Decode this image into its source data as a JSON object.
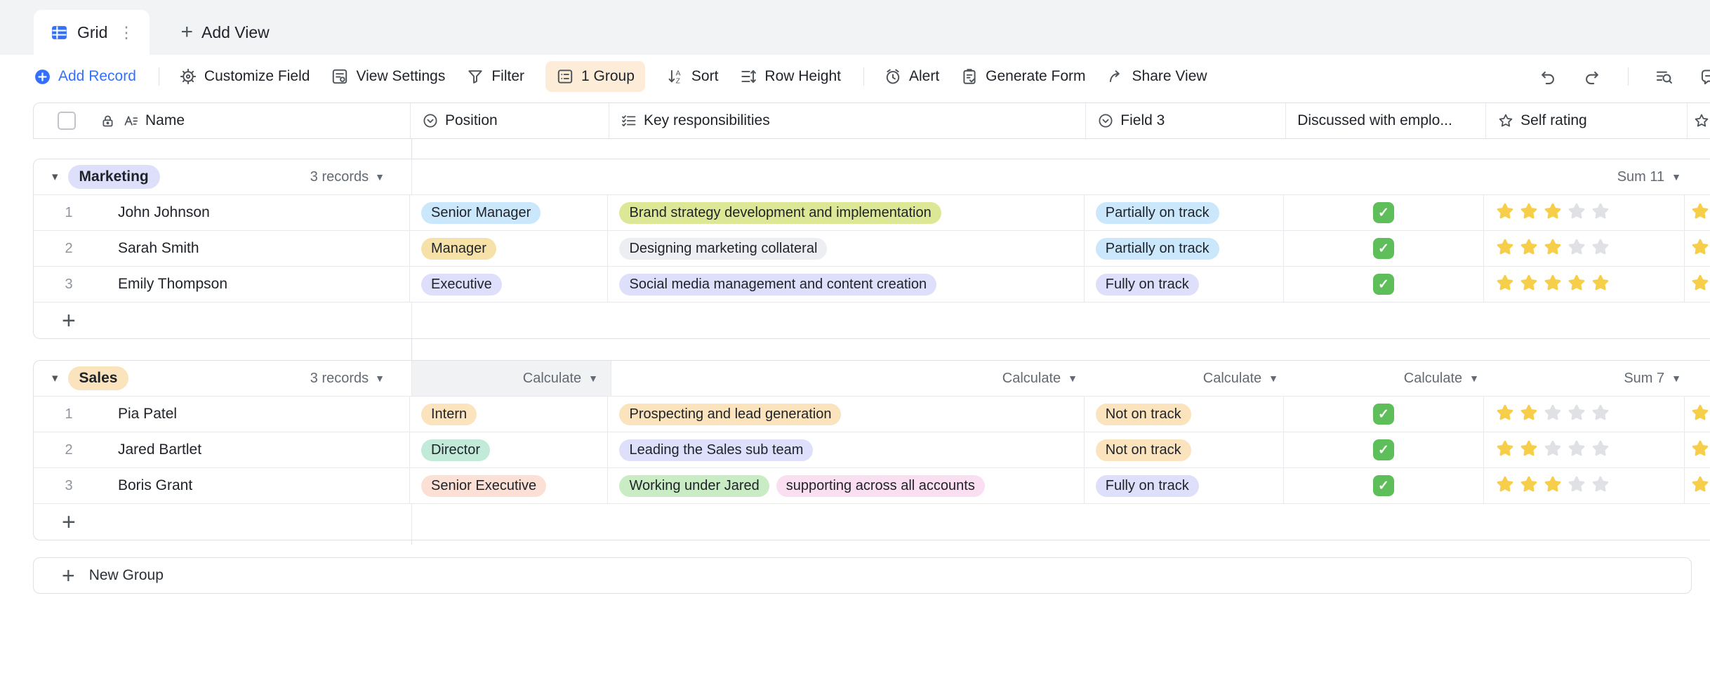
{
  "tab_bar": {
    "active_tab": "Grid",
    "add_view_label": "Add View"
  },
  "toolbar": {
    "add_record": "Add Record",
    "customize_field": "Customize Field",
    "view_settings": "View Settings",
    "filter": "Filter",
    "group": "1 Group",
    "sort": "Sort",
    "row_height": "Row Height",
    "alert": "Alert",
    "generate_form": "Generate Form",
    "share_view": "Share View"
  },
  "header": {
    "name": "Name",
    "position": "Position",
    "key_responsibilities": "Key responsibilities",
    "field3": "Field 3",
    "discussed": "Discussed with emplo...",
    "self_rating": "Self rating"
  },
  "groups": [
    {
      "name": "Marketing",
      "name_bg": "#dee0fb",
      "records": "3 records",
      "summary": {
        "position": "",
        "keyresp": "",
        "field3": "",
        "discussed": "",
        "rating": "Sum 11"
      },
      "rows": [
        {
          "num": "1",
          "name": "John Johnson",
          "position": {
            "label": "Senior Manager",
            "bg": "#cbe7fb"
          },
          "responsibilities": [
            {
              "label": "Brand strategy development and implementation",
              "bg": "#dce896"
            }
          ],
          "field3": {
            "label": "Partially on track",
            "bg": "#cbe7fb"
          },
          "discussed": true,
          "rating": 3
        },
        {
          "num": "2",
          "name": "Sarah Smith",
          "position": {
            "label": "Manager",
            "bg": "#f6e2a8"
          },
          "responsibilities": [
            {
              "label": "Designing marketing collateral",
              "bg": "#eceef1"
            }
          ],
          "field3": {
            "label": "Partially on track",
            "bg": "#cbe7fb"
          },
          "discussed": true,
          "rating": 3
        },
        {
          "num": "3",
          "name": "Emily Thompson",
          "position": {
            "label": "Executive",
            "bg": "#dee0fb"
          },
          "responsibilities": [
            {
              "label": "Social media management and content creation",
              "bg": "#dee0fb"
            }
          ],
          "field3": {
            "label": "Fully on track",
            "bg": "#dee0fb"
          },
          "discussed": true,
          "rating": 5
        }
      ]
    },
    {
      "name": "Sales",
      "name_bg": "#fae3bd",
      "records": "3 records",
      "summary": {
        "position": "Calculate",
        "keyresp": "Calculate",
        "field3": "Calculate",
        "discussed": "Calculate",
        "rating": "Sum 7"
      },
      "rows": [
        {
          "num": "1",
          "name": "Pia Patel",
          "position": {
            "label": "Intern",
            "bg": "#fae3bd"
          },
          "responsibilities": [
            {
              "label": "Prospecting and lead generation",
              "bg": "#fae3bd"
            }
          ],
          "field3": {
            "label": "Not on track",
            "bg": "#fae3bd"
          },
          "discussed": true,
          "rating": 2
        },
        {
          "num": "2",
          "name": "Jared Bartlet",
          "position": {
            "label": "Director",
            "bg": "#c2ead9"
          },
          "responsibilities": [
            {
              "label": "Leading the Sales sub team",
              "bg": "#dee0fb"
            }
          ],
          "field3": {
            "label": "Not on track",
            "bg": "#fae3bd"
          },
          "discussed": true,
          "rating": 2
        },
        {
          "num": "3",
          "name": "Boris Grant",
          "position": {
            "label": "Senior Executive",
            "bg": "#fde0d5"
          },
          "responsibilities": [
            {
              "label": "Working under Jared",
              "bg": "#caecc4"
            },
            {
              "label": "supporting across all accounts",
              "bg": "#fadef2"
            }
          ],
          "field3": {
            "label": "Fully on track",
            "bg": "#dee0fb"
          },
          "discussed": true,
          "rating": 3
        }
      ]
    }
  ],
  "footer": {
    "new_group": "New Group"
  },
  "colors": {
    "accent_blue": "#3370ff",
    "group_button_bg": "#fdecd8",
    "star_on": "#f7ce49",
    "star_off": "#dfe1e4",
    "checkbox_green": "#5dbe5a",
    "tabbar_bg": "#f2f3f5",
    "border": "#dee0e3"
  }
}
